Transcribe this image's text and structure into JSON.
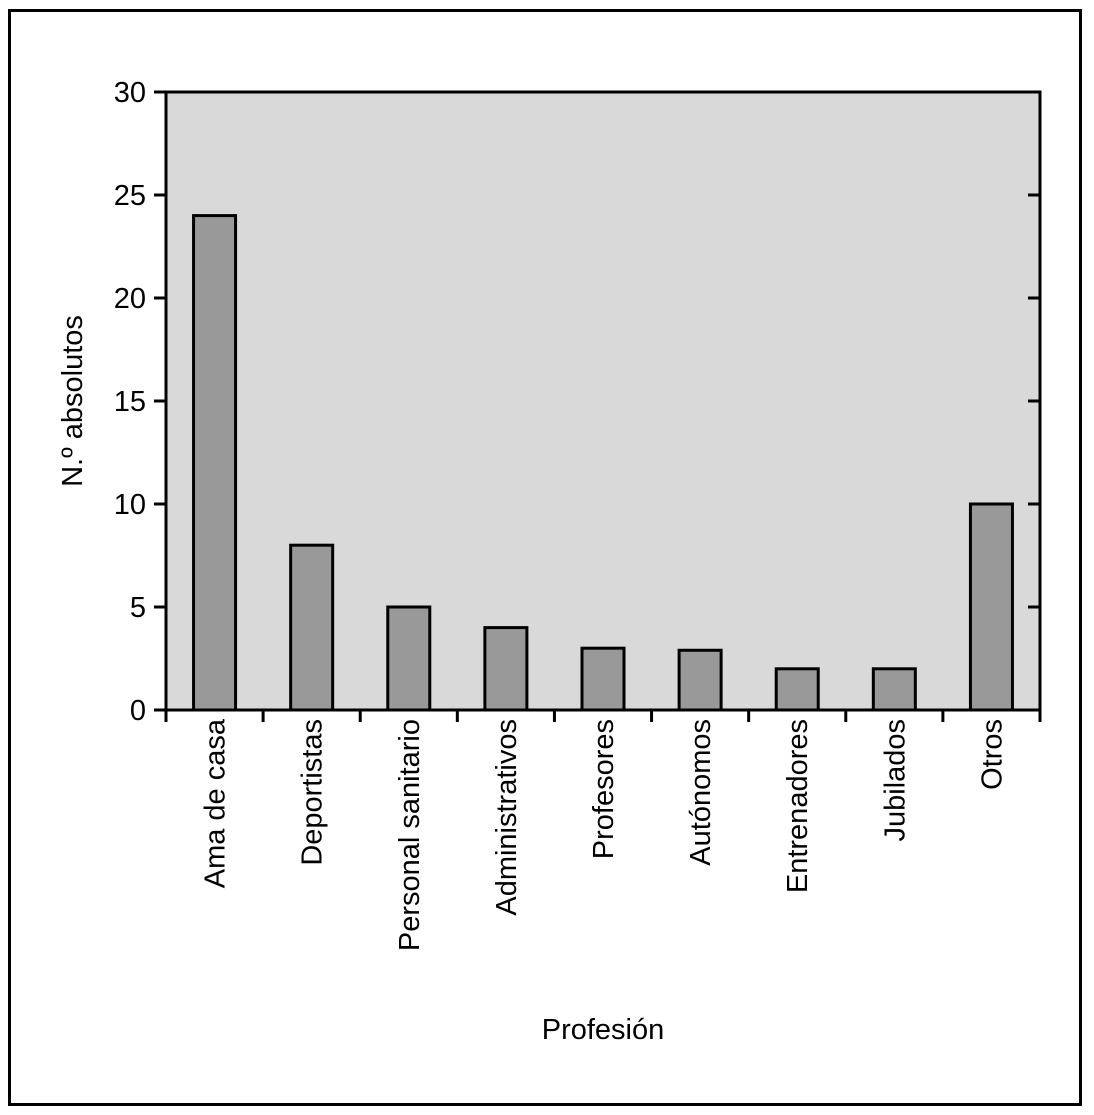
{
  "chart_data": {
    "type": "bar",
    "title": "",
    "xlabel": "Profesión",
    "ylabel": "N.º absolutos",
    "categories": [
      "Ama de casa",
      "Deportistas",
      "Personal sanitario",
      "Administrativos",
      "Profesores",
      "Autónomos",
      "Entrenadores",
      "Jubilados",
      "Otros"
    ],
    "values": [
      24,
      8,
      5,
      4,
      3,
      2.9,
      2,
      2,
      10
    ],
    "ylim": [
      0,
      30
    ],
    "yticks": [
      0,
      5,
      10,
      15,
      20,
      25,
      30
    ],
    "grid": false,
    "legend": "none",
    "colors": {
      "plot_background": "#d9d9d9",
      "bar_fill": "#999999",
      "bar_stroke": "#000000",
      "axis": "#000000"
    }
  }
}
